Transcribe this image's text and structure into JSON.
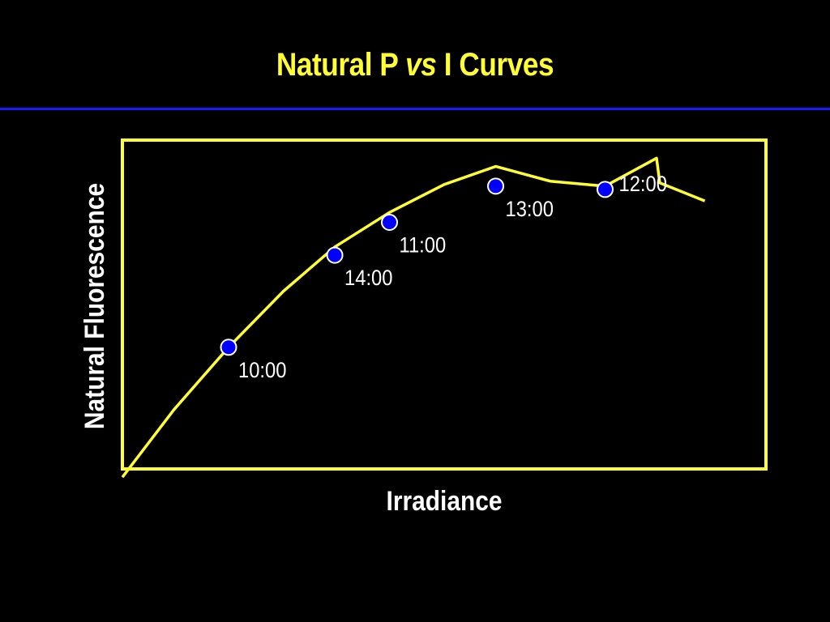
{
  "slide": {
    "title_prefix": "Natural P ",
    "title_vs": "vs",
    "title_suffix": " I Curves"
  },
  "colors": {
    "background": "#000000",
    "title": "#FFFF33",
    "rule": "#1a1aff",
    "frame": "#FFFF33",
    "curve": "#FFFF33",
    "point_fill": "#0000FF",
    "point_stroke": "#ffffff",
    "text": "#ffffff"
  },
  "chart_data": {
    "type": "line",
    "title": "Natural P vs I Curves",
    "xlabel": "Irradiance",
    "ylabel": "Natural Fluorescence",
    "xlim": [
      0,
      100
    ],
    "ylim": [
      0,
      100
    ],
    "grid": false,
    "axis_ticks": false,
    "curve": {
      "x": [
        0,
        8,
        16.5,
        25,
        33,
        41.5,
        50,
        58,
        66.5,
        75,
        83,
        83.5,
        90.5
      ],
      "y": [
        -2.5,
        18,
        37,
        54,
        67.5,
        78,
        86.5,
        92,
        87.5,
        86,
        94.5,
        87,
        81.5
      ]
    },
    "points": [
      {
        "label": "10:00",
        "x": 16.5,
        "y": 37
      },
      {
        "label": "14:00",
        "x": 33,
        "y": 65
      },
      {
        "label": "11:00",
        "x": 41.5,
        "y": 75
      },
      {
        "label": "13:00",
        "x": 58,
        "y": 86
      },
      {
        "label": "12:00",
        "x": 75,
        "y": 85
      }
    ]
  }
}
